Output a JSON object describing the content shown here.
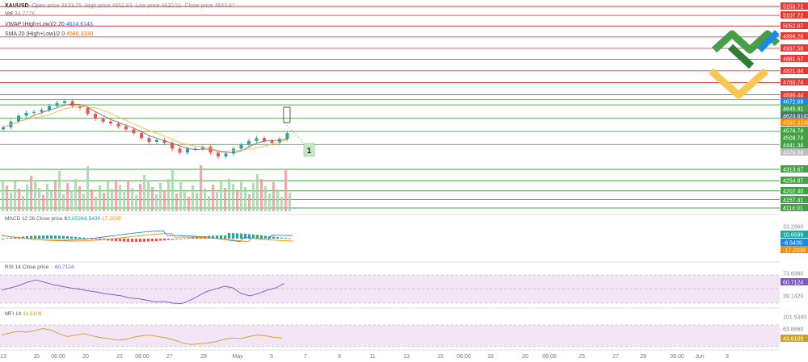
{
  "header": {
    "symbol": "XAUUSD",
    "ohlc": [
      {
        "label": "Open price",
        "value": "4633.75"
      },
      {
        "label": "High price",
        "value": "4652.83"
      },
      {
        "label": "Low price",
        "value": "4620.51"
      },
      {
        "label": "Close price",
        "value": "4643.67"
      }
    ],
    "vol_label": "Vol",
    "vol_value": "34.227K",
    "vwap_label": "VWAP (High+Low)/2 20",
    "vwap_value": "4624.6143",
    "sma_label": "SMA 20 (High+Low)/2 0",
    "sma_value": "4580.3330"
  },
  "panes": {
    "macd_label": "MACD 12 26 Close price 9",
    "macd_values": [
      "10.6599",
      "-6.5439",
      "-17.2039"
    ],
    "rsi_label": "RSI 14 Close price",
    "rsi_value": "60.7124",
    "mfi_label": "MFI 14",
    "mfi_value": "43.6109"
  },
  "colors": {
    "red_line": "#e53935",
    "green_line": "#43a047",
    "up_candle": "#26a69a",
    "down_candle": "#ef5350",
    "vwap": "#8d6e63",
    "sma": "#ffb74d",
    "macd_line": "#1e88e5",
    "signal_line": "#fb8c00",
    "rsi_line": "#7e57c2",
    "mfi_line": "#c9a227",
    "band_fill": "#f3e5f5"
  },
  "chart_data": {
    "type": "candlestick",
    "title": "XAUUSD",
    "price_levels_red": [
      5153.72,
      5107.72,
      5052.87,
      4996.28,
      4937.58,
      4881.57,
      4821.84,
      4760.74,
      4698.44
    ],
    "price_levels_green": [
      4672.69,
      4645.91,
      4576.74,
      4508.74,
      4441.34,
      4313.67,
      4254.87,
      4202.4,
      4157.41,
      4114.01
    ],
    "axis_tags": [
      {
        "text": "5153.72",
        "color": "red"
      },
      {
        "text": "5107.72",
        "color": "red"
      },
      {
        "text": "5052.87",
        "color": "red"
      },
      {
        "text": "4996.28",
        "color": "red"
      },
      {
        "text": "4937.58",
        "color": "red"
      },
      {
        "text": "4881.57",
        "color": "red"
      },
      {
        "text": "4821.84",
        "color": "red"
      },
      {
        "text": "4760.74",
        "color": "red"
      },
      {
        "text": "4698.44",
        "color": "red"
      },
      {
        "text": "4672.69",
        "color": "blue"
      },
      {
        "text": "4645.91",
        "color": "green"
      },
      {
        "text": "4624.6143",
        "color": "slate"
      },
      {
        "text": "4580.3330",
        "color": "orange"
      },
      {
        "text": "4576.74",
        "color": "green"
      },
      {
        "text": "4508.74",
        "color": "green"
      },
      {
        "text": "4441.34",
        "color": "green"
      },
      {
        "text": "4376.04",
        "color": "grey"
      },
      {
        "text": "4313.67",
        "color": "green"
      },
      {
        "text": "4254.87",
        "color": "green"
      },
      {
        "text": "4202.40",
        "color": "green"
      },
      {
        "text": "4157.41",
        "color": "green"
      },
      {
        "text": "4114.01",
        "color": "green"
      }
    ],
    "macd_scale": [
      "33.2860",
      "10.6599",
      "-6.5439",
      "-17.2039"
    ],
    "rsi_scale": [
      "73.6960",
      "60.7124",
      "39.1420"
    ],
    "mfi_scale": [
      "101.5340",
      "63.8860",
      "43.6109"
    ],
    "x_ticks": [
      "13",
      "15",
      "06:00",
      "20",
      "22",
      "06:00",
      "27",
      "29",
      "May",
      "5",
      "7",
      "9",
      "11",
      "13",
      "15",
      "06:00",
      "18",
      "20",
      "06:00",
      "25",
      "27",
      "29",
      "06:00",
      "Jun",
      "3"
    ],
    "wave_label": "1",
    "close_approx": [
      4530,
      4560,
      4590,
      4605,
      4610,
      4620,
      4640,
      4655,
      4665,
      4640,
      4630,
      4600,
      4575,
      4560,
      4550,
      4535,
      4520,
      4500,
      4475,
      4455,
      4465,
      4450,
      4420,
      4400,
      4420,
      4420,
      4430,
      4400,
      4380,
      4395,
      4420,
      4440,
      4460,
      4475,
      4460,
      4450,
      4470,
      4500
    ],
    "rsi_approx": [
      48,
      52,
      56,
      62,
      66,
      62,
      58,
      55,
      52,
      50,
      47,
      45,
      42,
      40,
      38,
      34,
      33,
      30,
      27,
      28,
      25,
      24,
      30,
      38,
      46,
      50,
      55,
      52,
      42,
      38,
      42,
      48,
      52,
      60
    ],
    "mfi_approx": [
      52,
      58,
      62,
      60,
      64,
      70,
      66,
      55,
      48,
      52,
      56,
      50,
      45,
      42,
      38,
      40,
      46,
      50,
      52,
      48,
      44,
      38,
      30,
      26,
      28,
      30,
      34,
      40,
      44,
      42,
      48,
      52,
      50,
      46,
      44
    ]
  }
}
